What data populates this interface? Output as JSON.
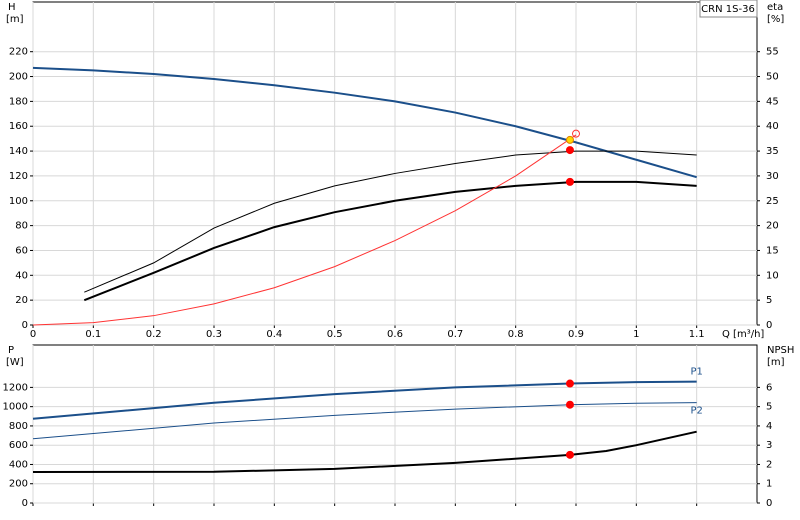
{
  "chart_data": [
    {
      "type": "line",
      "label": "CRN 1S-36",
      "xlabel": "Q [m³/h]",
      "ylabel": "H",
      "yunit": "[m]",
      "y2label": "eta",
      "y2unit": "[%]",
      "xlim": [
        0,
        1.2
      ],
      "xticks": [
        0,
        0.1,
        0.2,
        0.3,
        0.4,
        0.5,
        0.6,
        0.7,
        0.8,
        0.9,
        1.0,
        1.1
      ],
      "show_xtick_labels": true,
      "ylim": [
        0,
        260
      ],
      "yticks": [
        0,
        20,
        40,
        60,
        80,
        100,
        120,
        140,
        160,
        180,
        200,
        220
      ],
      "y2lim": [
        0,
        65
      ],
      "y2ticks": [
        0,
        5,
        10,
        15,
        20,
        25,
        30,
        35,
        40,
        45,
        50,
        55
      ],
      "grid": true,
      "series": [
        {
          "color": "#1b4f8a",
          "line_width": 2,
          "axis": "y",
          "x": [
            0,
            0.1,
            0.2,
            0.3,
            0.4,
            0.5,
            0.6,
            0.7,
            0.8,
            0.9,
            1.0,
            1.1
          ],
          "values": [
            207,
            205,
            202,
            198,
            193,
            187,
            180,
            171,
            160,
            147,
            133,
            119
          ]
        },
        {
          "color": "#000000",
          "line_width": 1,
          "axis": "y2",
          "x": [
            0.085,
            0.2,
            0.3,
            0.4,
            0.5,
            0.6,
            0.7,
            0.8,
            0.9,
            1.0,
            1.1
          ],
          "values": [
            6.6,
            12.5,
            19.5,
            24.5,
            28,
            30.5,
            32.5,
            34.2,
            35,
            35,
            34.2
          ]
        },
        {
          "color": "#000000",
          "line_width": 2,
          "axis": "y2",
          "x": [
            0.085,
            0.2,
            0.3,
            0.4,
            0.5,
            0.6,
            0.7,
            0.8,
            0.9,
            1.0,
            1.1
          ],
          "values": [
            5,
            10.5,
            15.5,
            19.7,
            22.7,
            25,
            26.8,
            28,
            28.8,
            28.8,
            28
          ]
        },
        {
          "color": "#ff3333",
          "line_width": 1,
          "axis": "y",
          "x": [
            0,
            0.1,
            0.2,
            0.3,
            0.4,
            0.5,
            0.6,
            0.7,
            0.8,
            0.9
          ],
          "values": [
            0,
            1.9,
            7.5,
            17,
            30,
            47,
            68,
            92,
            120,
            153
          ]
        }
      ],
      "markers": [
        {
          "x": 0.89,
          "y": 35.2,
          "axis": "y2",
          "fill": "#ff0000",
          "stroke": "#ff0000"
        },
        {
          "x": 0.89,
          "y": 28.8,
          "axis": "y2",
          "fill": "#ff0000",
          "stroke": "#ff0000"
        },
        {
          "x": 0.89,
          "y": 149,
          "axis": "y",
          "fill": "#ffd700",
          "stroke": "#e08000"
        },
        {
          "x": 0.9,
          "y": 154,
          "axis": "y",
          "fill": "none",
          "stroke": "#ff3333"
        }
      ]
    },
    {
      "type": "line",
      "ylabel": "P",
      "yunit": "[W]",
      "y2label": "NPSH",
      "y2unit": "[m]",
      "xlim": [
        0,
        1.2
      ],
      "xticks": [
        0,
        0.1,
        0.2,
        0.3,
        0.4,
        0.5,
        0.6,
        0.7,
        0.8,
        0.9,
        1.0,
        1.1
      ],
      "show_xtick_labels": false,
      "ylim": [
        0,
        1640
      ],
      "yticks": [
        0,
        200,
        400,
        600,
        800,
        1000,
        1200
      ],
      "y2lim": [
        0,
        8.2
      ],
      "y2ticks": [
        0,
        1,
        2,
        3,
        4,
        5,
        6
      ],
      "grid": true,
      "series": [
        {
          "name": "P1",
          "color": "#1b4f8a",
          "line_width": 2,
          "axis": "y",
          "x": [
            0,
            0.3,
            0.5,
            0.7,
            0.89,
            1.0,
            1.1
          ],
          "values": [
            875,
            1040,
            1130,
            1200,
            1240,
            1255,
            1260
          ]
        },
        {
          "name": "P2",
          "color": "#1b4f8a",
          "line_width": 1,
          "axis": "y",
          "x": [
            0,
            0.3,
            0.5,
            0.7,
            0.89,
            1.0,
            1.1
          ],
          "values": [
            667,
            830,
            910,
            975,
            1020,
            1035,
            1042
          ]
        },
        {
          "color": "#000000",
          "line_width": 2,
          "axis": "y2",
          "x": [
            0,
            0.3,
            0.5,
            0.7,
            0.89,
            0.95,
            1.0,
            1.1
          ],
          "values": [
            1.61,
            1.62,
            1.77,
            2.08,
            2.5,
            2.7,
            3.0,
            3.7
          ]
        }
      ],
      "markers": [
        {
          "x": 0.89,
          "y": 1240,
          "axis": "y",
          "fill": "#ff0000",
          "stroke": "#ff0000"
        },
        {
          "x": 0.89,
          "y": 1020,
          "axis": "y",
          "fill": "#ff0000",
          "stroke": "#ff0000"
        },
        {
          "x": 0.89,
          "y": 2.5,
          "axis": "y2",
          "fill": "#ff0000",
          "stroke": "#ff0000"
        }
      ]
    }
  ]
}
